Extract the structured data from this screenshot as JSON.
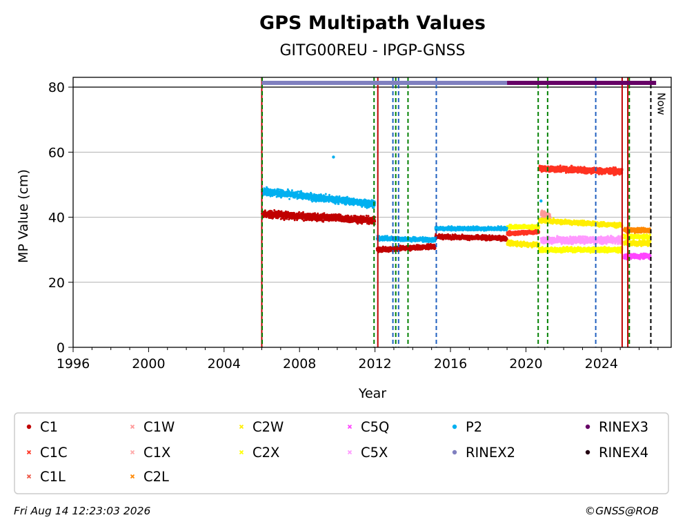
{
  "chart_data": {
    "type": "scatter",
    "title": "GPS Multipath Values",
    "subtitle": "GITG00REU - IPGP-GNSS",
    "xlabel": "Year",
    "ylabel": "MP Value (cm)",
    "xlim": [
      1996,
      2027.7
    ],
    "ylim": [
      0,
      83
    ],
    "x_ticks": [
      1996,
      2000,
      2004,
      2008,
      2012,
      2016,
      2020,
      2024
    ],
    "y_ticks": [
      0,
      20,
      40,
      60,
      80
    ],
    "grid": "horizontal",
    "legend_placement": "bottom",
    "series": [
      {
        "name": "C1",
        "color": "#c00000",
        "marker": "dot",
        "segments": [
          {
            "x0": 2006.0,
            "x1": 2012.0,
            "y0": 41.0,
            "y1": 39.0,
            "noise": 1.5
          },
          {
            "x0": 2012.1,
            "x1": 2015.2,
            "y0": 30.0,
            "y1": 31.0,
            "noise": 1.0
          },
          {
            "x0": 2015.2,
            "x1": 2019.0,
            "y0": 34.0,
            "y1": 33.5,
            "noise": 1.0
          }
        ]
      },
      {
        "name": "C1C",
        "color": "#ff3322",
        "marker": "x",
        "segments": [
          {
            "x0": 2019.0,
            "x1": 2020.7,
            "y0": 35.0,
            "y1": 35.5,
            "noise": 0.8
          },
          {
            "x0": 2020.7,
            "x1": 2025.1,
            "y0": 55.0,
            "y1": 54.0,
            "noise": 1.3
          }
        ]
      },
      {
        "name": "C1L",
        "color": "#ee5544",
        "marker": "x",
        "segments": []
      },
      {
        "name": "C1W",
        "color": "#ff9999",
        "marker": "x",
        "segments": [
          {
            "x0": 2020.8,
            "x1": 2021.3,
            "y0": 41.0,
            "y1": 40.0,
            "noise": 1.5
          }
        ]
      },
      {
        "name": "C1X",
        "color": "#ffaaaa",
        "marker": "x",
        "segments": []
      },
      {
        "name": "C2L",
        "color": "#ff8800",
        "marker": "x",
        "segments": [
          {
            "x0": 2025.2,
            "x1": 2026.6,
            "y0": 36.0,
            "y1": 36.0,
            "noise": 1.0
          }
        ]
      },
      {
        "name": "C2W",
        "color": "#ffee00",
        "marker": "x",
        "segments": [
          {
            "x0": 2019.0,
            "x1": 2020.7,
            "y0": 32.0,
            "y1": 31.5,
            "noise": 1.0
          },
          {
            "x0": 2020.7,
            "x1": 2025.1,
            "y0": 39.0,
            "y1": 37.5,
            "noise": 0.9
          },
          {
            "x0": 2025.2,
            "x1": 2026.6,
            "y0": 32.0,
            "y1": 32.0,
            "noise": 1.0
          }
        ]
      },
      {
        "name": "C2X",
        "color": "#ffff00",
        "marker": "x",
        "segments": [
          {
            "x0": 2019.0,
            "x1": 2020.7,
            "y0": 37.0,
            "y1": 37.0,
            "noise": 0.8
          },
          {
            "x0": 2020.7,
            "x1": 2025.1,
            "y0": 30.0,
            "y1": 30.0,
            "noise": 1.0
          },
          {
            "x0": 2025.2,
            "x1": 2026.6,
            "y0": 34.0,
            "y1": 34.0,
            "noise": 0.8
          }
        ]
      },
      {
        "name": "C5Q",
        "color": "#ff44ff",
        "marker": "x",
        "segments": [
          {
            "x0": 2025.2,
            "x1": 2026.6,
            "y0": 28.0,
            "y1": 28.0,
            "noise": 1.0
          }
        ]
      },
      {
        "name": "C5X",
        "color": "#ff99ff",
        "marker": "x",
        "segments": [
          {
            "x0": 2020.8,
            "x1": 2025.1,
            "y0": 33.0,
            "y1": 33.0,
            "noise": 1.5
          }
        ]
      },
      {
        "name": "P2",
        "color": "#00b0f0",
        "marker": "dot",
        "segments": [
          {
            "x0": 2006.0,
            "x1": 2012.0,
            "y0": 48.0,
            "y1": 44.0,
            "noise": 1.5
          },
          {
            "x0": 2012.1,
            "x1": 2015.2,
            "y0": 33.5,
            "y1": 33.0,
            "noise": 0.9
          },
          {
            "x0": 2015.2,
            "x1": 2019.0,
            "y0": 36.5,
            "y1": 36.5,
            "noise": 0.8
          }
        ],
        "points": [
          {
            "x": 2009.8,
            "y": 58.5
          },
          {
            "x": 2020.8,
            "y": 45.0
          }
        ]
      },
      {
        "name": "RINEX2",
        "color": "#8080c0",
        "marker": "dot",
        "bar": {
          "x0": 2006.0,
          "x1": 2019.0,
          "y": 81.3
        }
      },
      {
        "name": "RINEX3",
        "color": "#660066",
        "marker": "dot",
        "bar": {
          "x0": 2019.0,
          "x1": 2026.9,
          "y": 81.3
        }
      },
      {
        "name": "RINEX4",
        "color": "#220011",
        "marker": "dot"
      }
    ],
    "vlines": [
      {
        "x": 2006.0,
        "color": "#c00000",
        "style": "solid"
      },
      {
        "x": 2006.02,
        "color": "#008000",
        "style": "dashed"
      },
      {
        "x": 2011.95,
        "color": "#008000",
        "style": "dashed"
      },
      {
        "x": 2012.15,
        "color": "#c00000",
        "style": "solid"
      },
      {
        "x": 2012.95,
        "color": "#1f5fbf",
        "style": "dashed"
      },
      {
        "x": 2013.1,
        "color": "#008000",
        "style": "dashed"
      },
      {
        "x": 2013.25,
        "color": "#1f5fbf",
        "style": "dashed"
      },
      {
        "x": 2013.75,
        "color": "#008000",
        "style": "dashed"
      },
      {
        "x": 2015.25,
        "color": "#1f5fbf",
        "style": "dashed"
      },
      {
        "x": 2020.65,
        "color": "#008000",
        "style": "dashed"
      },
      {
        "x": 2021.15,
        "color": "#008000",
        "style": "dashed"
      },
      {
        "x": 2023.7,
        "color": "#1f5fbf",
        "style": "dashed"
      },
      {
        "x": 2025.1,
        "color": "#c00000",
        "style": "solid"
      },
      {
        "x": 2025.4,
        "color": "#c00000",
        "style": "solid"
      },
      {
        "x": 2025.48,
        "color": "#008000",
        "style": "dashed"
      },
      {
        "x": 2026.62,
        "color": "#000000",
        "style": "dashed"
      }
    ],
    "reference_line_y": 80,
    "now_label": "Now",
    "now_x": 2026.62
  },
  "legend_columns": [
    [
      "C1",
      "C1C",
      "C1L"
    ],
    [
      "C1W",
      "C1X",
      "C2L"
    ],
    [
      "C2W",
      "C2X"
    ],
    [
      "C5Q",
      "C5X"
    ],
    [
      "P2",
      "RINEX2"
    ],
    [
      "RINEX3",
      "RINEX4"
    ]
  ],
  "footer": {
    "timestamp": "Fri Aug 14 12:23:03 2026",
    "copyright": "©GNSS@ROB"
  }
}
